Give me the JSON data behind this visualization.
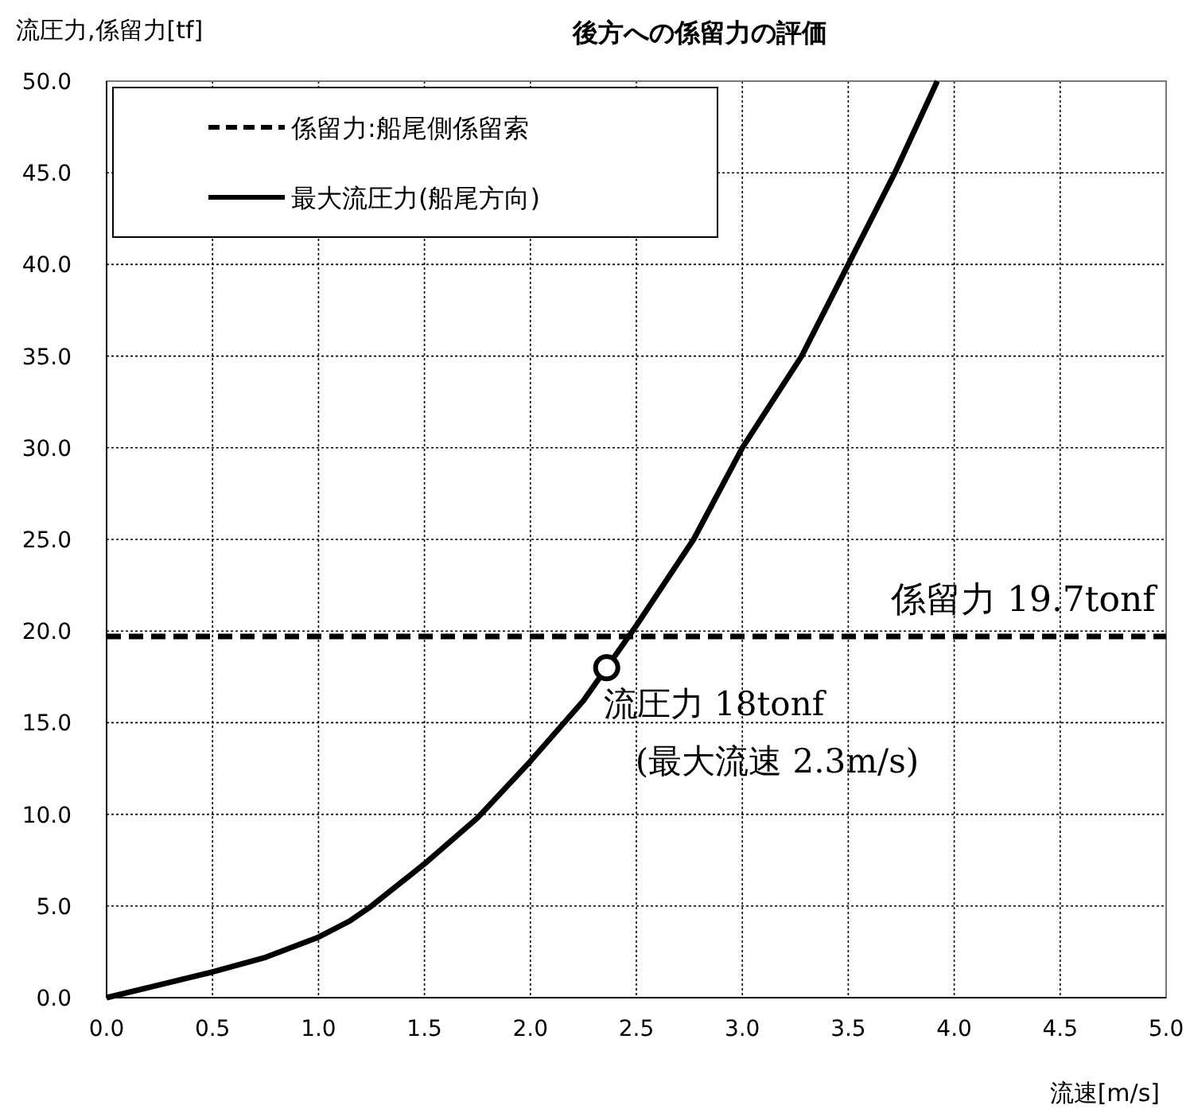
{
  "chart_data": {
    "type": "line",
    "title": "後方への係留力の評価",
    "xlabel": "流速[m/s]",
    "ylabel": "流圧力,係留力[tf]",
    "xlim": [
      0,
      5
    ],
    "ylim": [
      0,
      50
    ],
    "xticks": [
      {
        "value": 0,
        "label": "0.0"
      },
      {
        "value": 0.5,
        "label": "0.5"
      },
      {
        "value": 1,
        "label": "1.0"
      },
      {
        "value": 1.5,
        "label": "1.5"
      },
      {
        "value": 2,
        "label": "2.0"
      },
      {
        "value": 2.5,
        "label": "2.5"
      },
      {
        "value": 3,
        "label": "3.0"
      },
      {
        "value": 3.5,
        "label": "3.5"
      },
      {
        "value": 4,
        "label": "4.0"
      },
      {
        "value": 4.5,
        "label": "4.5"
      },
      {
        "value": 5,
        "label": "5.0"
      }
    ],
    "yticks": [
      {
        "value": 0,
        "label": "0.0"
      },
      {
        "value": 5,
        "label": "5.0"
      },
      {
        "value": 10,
        "label": "10.0"
      },
      {
        "value": 15,
        "label": "15.0"
      },
      {
        "value": 20,
        "label": "20.0"
      },
      {
        "value": 25,
        "label": "25.0"
      },
      {
        "value": 30,
        "label": "30.0"
      },
      {
        "value": 35,
        "label": "35.0"
      },
      {
        "value": 40,
        "label": "40.0"
      },
      {
        "value": 45,
        "label": "45.0"
      },
      {
        "value": 50,
        "label": "50.0"
      }
    ],
    "grid": true,
    "legend": "top left",
    "series": [
      {
        "name": "係留力:船尾側係留索",
        "color": "#000000",
        "line_style": "dashed",
        "x": [
          0,
          5
        ],
        "values": [
          19.7,
          19.7
        ]
      },
      {
        "name": "最大流圧力(船尾方向)",
        "color": "#000000",
        "line_style": "solid",
        "x": [
          0,
          0.25,
          0.5,
          0.75,
          1.0,
          1.15,
          1.25,
          1.5,
          1.75,
          2.0,
          2.25,
          2.5,
          2.77,
          3.0,
          3.28,
          3.5,
          3.72,
          3.92
        ],
        "values": [
          0,
          0.7,
          1.4,
          2.2,
          3.3,
          4.2,
          5.0,
          7.3,
          9.8,
          12.9,
          16.2,
          20.3,
          25,
          30,
          35,
          40,
          45,
          50
        ]
      },
      {
        "type": "scatter",
        "color": "#000000",
        "marker": "circle",
        "x": [
          2.36
        ],
        "values": [
          18.0
        ]
      }
    ],
    "annotations": [
      {
        "text": "係留力 19.7tonf",
        "x": 4.95,
        "y": 19.7
      },
      {
        "text": "流圧力 18tonf\n(最大流速 2.3m/s)",
        "x": 2.36,
        "y": 18.0
      }
    ]
  }
}
